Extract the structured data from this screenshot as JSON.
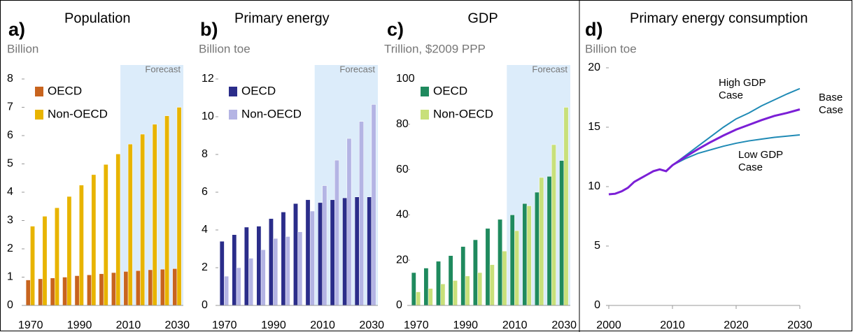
{
  "chart_data": [
    {
      "type": "bar",
      "label": "a)",
      "title": "Population",
      "subtitle": "Billion",
      "categories": [
        "1970",
        null,
        null,
        null,
        "1990",
        null,
        null,
        null,
        "2010",
        null,
        null,
        null,
        "2030"
      ],
      "series": [
        {
          "name": "OECD",
          "color": "#c8641e",
          "values": [
            0.9,
            0.94,
            0.97,
            1.0,
            1.05,
            1.08,
            1.12,
            1.16,
            1.2,
            1.23,
            1.26,
            1.28,
            1.3
          ]
        },
        {
          "name": "Non-OECD",
          "color": "#e8b400",
          "values": [
            2.8,
            3.15,
            3.45,
            3.85,
            4.25,
            4.62,
            4.98,
            5.35,
            5.7,
            6.05,
            6.4,
            6.7,
            7.0
          ]
        }
      ],
      "ylim": [
        0,
        8
      ],
      "yticks": [
        0,
        1,
        2,
        3,
        4,
        5,
        6,
        7,
        8
      ],
      "legend": "upper left",
      "annotation": {
        "text": "Forecast",
        "start": "2010"
      }
    },
    {
      "type": "bar",
      "label": "b)",
      "title": "Primary energy",
      "subtitle": "Billion toe",
      "categories": [
        "1970",
        null,
        null,
        null,
        "1990",
        null,
        null,
        null,
        "2010",
        null,
        null,
        null,
        "2030"
      ],
      "series": [
        {
          "name": "OECD",
          "color": "#2b2d8a",
          "values": [
            3.4,
            3.75,
            4.15,
            4.2,
            4.6,
            4.95,
            5.4,
            5.6,
            5.45,
            5.6,
            5.7,
            5.75,
            5.75
          ]
        },
        {
          "name": "Non-OECD",
          "color": "#b4b4e4",
          "values": [
            1.55,
            2.0,
            2.5,
            2.95,
            3.55,
            3.65,
            3.9,
            5.0,
            6.35,
            7.7,
            8.85,
            9.75,
            10.65
          ]
        }
      ],
      "ylim": [
        0,
        12
      ],
      "yticks": [
        0,
        2,
        4,
        6,
        8,
        10,
        12
      ],
      "legend": "upper left",
      "annotation": {
        "text": "Forecast",
        "start": "2010"
      }
    },
    {
      "type": "bar",
      "label": "c)",
      "title": "GDP",
      "subtitle": "Trillion, $2009 PPP",
      "categories": [
        "1970",
        null,
        null,
        null,
        "1990",
        null,
        null,
        null,
        "2010",
        null,
        null,
        null,
        "2030"
      ],
      "series": [
        {
          "name": "OECD",
          "color": "#1f8a5e",
          "values": [
            14.5,
            16.5,
            19.5,
            22,
            26,
            29,
            34,
            38,
            40,
            45,
            50,
            57,
            64
          ]
        },
        {
          "name": "Non-OECD",
          "color": "#c8e07a",
          "values": [
            6,
            7.5,
            9.5,
            11,
            13,
            14.5,
            18,
            24,
            33,
            44,
            56.5,
            71,
            87.5
          ]
        }
      ],
      "ylim": [
        0,
        100
      ],
      "yticks": [
        0,
        20,
        40,
        60,
        80,
        100
      ],
      "legend": "upper left",
      "annotation": {
        "text": "Forecast",
        "start": "2010"
      }
    },
    {
      "type": "line",
      "label": "d)",
      "title": "Primary energy consumption",
      "subtitle": "Billion toe",
      "x": [
        2000,
        2001,
        2002,
        2003,
        2004,
        2005,
        2006,
        2007,
        2008,
        2009,
        2010,
        2012,
        2014,
        2016,
        2018,
        2020,
        2022,
        2024,
        2026,
        2028,
        2030
      ],
      "series": [
        {
          "name": "High GDP Case",
          "color": "#1f8ab5",
          "values": [
            null,
            null,
            null,
            null,
            null,
            null,
            null,
            null,
            null,
            null,
            11.8,
            12.6,
            13.4,
            14.2,
            15.0,
            15.7,
            16.2,
            16.8,
            17.3,
            17.8,
            18.25
          ]
        },
        {
          "name": "Low GDP Case",
          "color": "#1f8ab5",
          "values": [
            null,
            null,
            null,
            null,
            null,
            null,
            null,
            null,
            null,
            null,
            11.8,
            12.35,
            12.8,
            13.1,
            13.4,
            13.65,
            13.85,
            14.0,
            14.15,
            14.25,
            14.35
          ]
        },
        {
          "name": "Base Case",
          "color": "#7b1fd6",
          "values": [
            9.35,
            9.4,
            9.6,
            9.9,
            10.4,
            10.7,
            11.0,
            11.3,
            11.45,
            11.3,
            11.8,
            12.5,
            13.15,
            13.75,
            14.3,
            14.8,
            15.2,
            15.6,
            15.95,
            16.2,
            16.5
          ]
        }
      ],
      "xlim": [
        2000,
        2030
      ],
      "xticks": [
        2000,
        2010,
        2020,
        2030
      ],
      "ylim": [
        0,
        20
      ],
      "yticks": [
        0,
        5,
        10,
        15,
        20
      ]
    }
  ]
}
